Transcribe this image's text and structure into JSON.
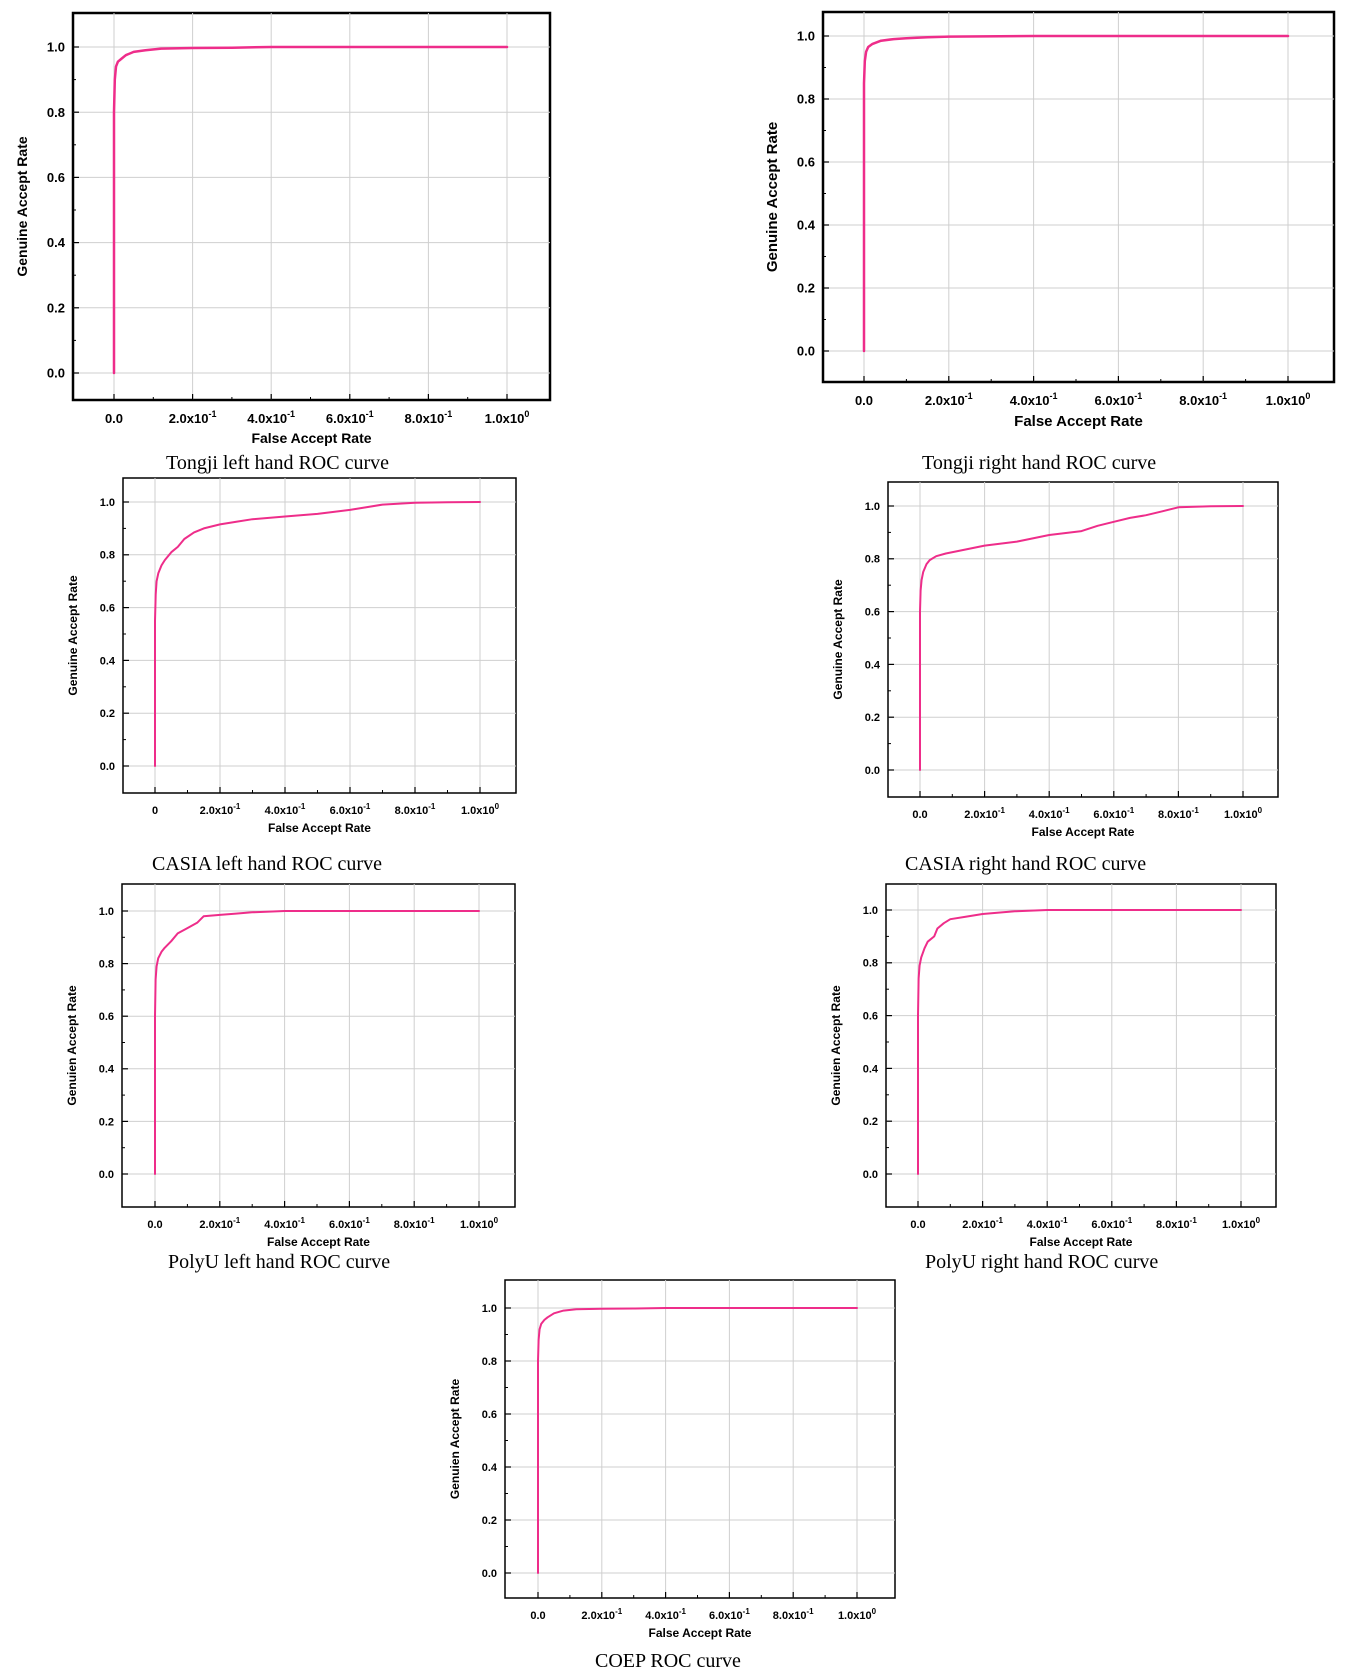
{
  "chart_data": [
    {
      "type": "line",
      "title": "Tongji left hand ROC curve",
      "xlabel": "False Accept Rate",
      "ylabel": "Genuine Accept Rate",
      "xlim": [
        0,
        1
      ],
      "ylim": [
        0,
        1
      ],
      "grid": true,
      "x_ticks": [
        0,
        0.2,
        0.4,
        0.6,
        0.8,
        1.0
      ],
      "x_tick_labels": [
        [
          "0.0",
          ""
        ],
        [
          "2.0x10",
          "-1"
        ],
        [
          "4.0x10",
          "-1"
        ],
        [
          "6.0x10",
          "-1"
        ],
        [
          "8.0x10",
          "-1"
        ],
        [
          "1.0x10",
          "0"
        ]
      ],
      "y_ticks": [
        0,
        0.2,
        0.4,
        0.6,
        0.8,
        1.0
      ],
      "y_tick_labels": [
        "0.0",
        "0.2",
        "0.4",
        "0.6",
        "0.8",
        "1.0"
      ],
      "series": [
        {
          "color": "#ee2d8a",
          "x": [
            0,
            0,
            0.002,
            0.005,
            0.01,
            0.02,
            0.03,
            0.05,
            0.08,
            0.12,
            0.2,
            0.3,
            0.4,
            0.6,
            0.8,
            1.0
          ],
          "y": [
            0,
            0.8,
            0.9,
            0.94,
            0.955,
            0.965,
            0.975,
            0.985,
            0.99,
            0.995,
            0.997,
            0.998,
            1.0,
            1.0,
            1.0,
            1.0
          ]
        }
      ]
    },
    {
      "type": "line",
      "title": "Tongji right hand ROC curve",
      "xlabel": "False Accept Rate",
      "ylabel": "Genuine Accept Rate",
      "xlim": [
        0,
        1
      ],
      "ylim": [
        0,
        1
      ],
      "grid": true,
      "x_ticks": [
        0,
        0.2,
        0.4,
        0.6,
        0.8,
        1.0
      ],
      "x_tick_labels": [
        [
          "0.0",
          ""
        ],
        [
          "2.0x10",
          "-1"
        ],
        [
          "4.0x10",
          "-1"
        ],
        [
          "6.0x10",
          "-1"
        ],
        [
          "8.0x10",
          "-1"
        ],
        [
          "1.0x10",
          "0"
        ]
      ],
      "y_ticks": [
        0,
        0.2,
        0.4,
        0.6,
        0.8,
        1.0
      ],
      "y_tick_labels": [
        "0.0",
        "0.2",
        "0.4",
        "0.6",
        "0.8",
        "1.0"
      ],
      "series": [
        {
          "color": "#ee2d8a",
          "x": [
            0,
            0,
            0.002,
            0.005,
            0.01,
            0.02,
            0.04,
            0.07,
            0.1,
            0.15,
            0.2,
            0.4,
            0.6,
            0.8,
            1.0
          ],
          "y": [
            0,
            0.85,
            0.92,
            0.95,
            0.965,
            0.975,
            0.985,
            0.99,
            0.993,
            0.996,
            0.998,
            1.0,
            1.0,
            1.0,
            1.0
          ]
        }
      ]
    },
    {
      "type": "line",
      "title": "CASIA left hand ROC curve",
      "xlabel": "False Accept Rate",
      "ylabel": "Genuine Accept Rate",
      "xlim": [
        0,
        1
      ],
      "ylim": [
        0,
        1
      ],
      "grid": true,
      "x_ticks": [
        0,
        0.2,
        0.4,
        0.6,
        0.8,
        1.0
      ],
      "x_tick_labels": [
        [
          "0",
          ""
        ],
        [
          "2.0x10",
          "-1"
        ],
        [
          "4.0x10",
          "-1"
        ],
        [
          "6.0x10",
          "-1"
        ],
        [
          "8.0x10",
          "-1"
        ],
        [
          "1.0x10",
          "0"
        ]
      ],
      "y_ticks": [
        0,
        0.2,
        0.4,
        0.6,
        0.8,
        1.0
      ],
      "y_tick_labels": [
        "0.0",
        "0.2",
        "0.4",
        "0.6",
        "0.8",
        "1.0"
      ],
      "series": [
        {
          "color": "#ee2d8a",
          "x": [
            0,
            0,
            0.002,
            0.005,
            0.01,
            0.02,
            0.03,
            0.05,
            0.07,
            0.09,
            0.12,
            0.15,
            0.2,
            0.25,
            0.3,
            0.4,
            0.5,
            0.6,
            0.65,
            0.7,
            0.8,
            0.9,
            1.0
          ],
          "y": [
            0,
            0.55,
            0.65,
            0.7,
            0.73,
            0.76,
            0.78,
            0.81,
            0.83,
            0.86,
            0.885,
            0.9,
            0.915,
            0.925,
            0.935,
            0.945,
            0.955,
            0.97,
            0.98,
            0.99,
            0.997,
            0.999,
            1.0
          ]
        }
      ]
    },
    {
      "type": "line",
      "title": "CASIA right hand ROC curve",
      "xlabel": "False Accept Rate",
      "ylabel": "Genuine Accept Rate",
      "xlim": [
        0,
        1
      ],
      "ylim": [
        0,
        1
      ],
      "grid": true,
      "x_ticks": [
        0,
        0.2,
        0.4,
        0.6,
        0.8,
        1.0
      ],
      "x_tick_labels": [
        [
          "0.0",
          ""
        ],
        [
          "2.0x10",
          "-1"
        ],
        [
          "4.0x10",
          "-1"
        ],
        [
          "6.0x10",
          "-1"
        ],
        [
          "8.0x10",
          "-1"
        ],
        [
          "1.0x10",
          "0"
        ]
      ],
      "y_ticks": [
        0,
        0.2,
        0.4,
        0.6,
        0.8,
        1.0
      ],
      "y_tick_labels": [
        "0.0",
        "0.2",
        "0.4",
        "0.6",
        "0.8",
        "1.0"
      ],
      "series": [
        {
          "color": "#ee2d8a",
          "x": [
            0,
            0,
            0.002,
            0.005,
            0.01,
            0.02,
            0.03,
            0.05,
            0.08,
            0.12,
            0.2,
            0.3,
            0.4,
            0.5,
            0.55,
            0.6,
            0.65,
            0.7,
            0.75,
            0.8,
            0.9,
            1.0
          ],
          "y": [
            0,
            0.6,
            0.68,
            0.72,
            0.75,
            0.78,
            0.795,
            0.81,
            0.82,
            0.83,
            0.85,
            0.865,
            0.89,
            0.905,
            0.925,
            0.94,
            0.955,
            0.965,
            0.98,
            0.995,
            0.999,
            1.0
          ]
        }
      ]
    },
    {
      "type": "line",
      "title": "PolyU left hand ROC curve",
      "xlabel": "False Accept Rate",
      "ylabel": "Genuien Accept Rate",
      "xlim": [
        0,
        1
      ],
      "ylim": [
        0,
        1
      ],
      "grid": true,
      "x_ticks": [
        0,
        0.2,
        0.4,
        0.6,
        0.8,
        1.0
      ],
      "x_tick_labels": [
        [
          "0.0",
          ""
        ],
        [
          "2.0x10",
          "-1"
        ],
        [
          "4.0x10",
          "-1"
        ],
        [
          "6.0x10",
          "-1"
        ],
        [
          "8.0x10",
          "-1"
        ],
        [
          "1.0x10",
          "0"
        ]
      ],
      "y_ticks": [
        0,
        0.2,
        0.4,
        0.6,
        0.8,
        1.0
      ],
      "y_tick_labels": [
        "0.0",
        "0.2",
        "0.4",
        "0.6",
        "0.8",
        "1.0"
      ],
      "series": [
        {
          "color": "#ee2d8a",
          "x": [
            0,
            0,
            0.002,
            0.005,
            0.01,
            0.02,
            0.03,
            0.05,
            0.07,
            0.1,
            0.13,
            0.15,
            0.2,
            0.25,
            0.3,
            0.4,
            0.6,
            0.8,
            1.0
          ],
          "y": [
            0,
            0.6,
            0.74,
            0.79,
            0.82,
            0.845,
            0.86,
            0.885,
            0.915,
            0.935,
            0.955,
            0.98,
            0.985,
            0.99,
            0.995,
            1.0,
            1.0,
            1.0,
            1.0
          ]
        }
      ]
    },
    {
      "type": "line",
      "title": "PolyU right hand ROC curve",
      "xlabel": "False Accept Rate",
      "ylabel": "Genuien Accept Rate",
      "xlim": [
        0,
        1
      ],
      "ylim": [
        0,
        1
      ],
      "grid": true,
      "x_ticks": [
        0,
        0.2,
        0.4,
        0.6,
        0.8,
        1.0
      ],
      "x_tick_labels": [
        [
          "0.0",
          ""
        ],
        [
          "2.0x10",
          "-1"
        ],
        [
          "4.0x10",
          "-1"
        ],
        [
          "6.0x10",
          "-1"
        ],
        [
          "8.0x10",
          "-1"
        ],
        [
          "1.0x10",
          "0"
        ]
      ],
      "y_ticks": [
        0,
        0.2,
        0.4,
        0.6,
        0.8,
        1.0
      ],
      "y_tick_labels": [
        "0.0",
        "0.2",
        "0.4",
        "0.6",
        "0.8",
        "1.0"
      ],
      "series": [
        {
          "color": "#ee2d8a",
          "x": [
            0,
            0,
            0.002,
            0.005,
            0.01,
            0.02,
            0.03,
            0.05,
            0.06,
            0.08,
            0.1,
            0.15,
            0.2,
            0.3,
            0.4,
            0.6,
            0.8,
            1.0
          ],
          "y": [
            0,
            0.6,
            0.74,
            0.79,
            0.82,
            0.855,
            0.88,
            0.9,
            0.93,
            0.95,
            0.965,
            0.975,
            0.985,
            0.995,
            1.0,
            1.0,
            1.0,
            1.0
          ]
        }
      ]
    },
    {
      "type": "line",
      "title": "COEP ROC curve",
      "xlabel": "False Accept Rate",
      "ylabel": "Genuien Accept Rate",
      "xlim": [
        0,
        1
      ],
      "ylim": [
        0,
        1
      ],
      "grid": true,
      "x_ticks": [
        0,
        0.2,
        0.4,
        0.6,
        0.8,
        1.0
      ],
      "x_tick_labels": [
        [
          "0.0",
          ""
        ],
        [
          "2.0x10",
          "-1"
        ],
        [
          "4.0x10",
          "-1"
        ],
        [
          "6.0x10",
          "-1"
        ],
        [
          "8.0x10",
          "-1"
        ],
        [
          "1.0x10",
          "0"
        ]
      ],
      "y_ticks": [
        0,
        0.2,
        0.4,
        0.6,
        0.8,
        1.0
      ],
      "y_tick_labels": [
        "0.0",
        "0.2",
        "0.4",
        "0.6",
        "0.8",
        "1.0"
      ],
      "series": [
        {
          "color": "#ee2d8a",
          "x": [
            0,
            0,
            0.002,
            0.005,
            0.01,
            0.02,
            0.03,
            0.05,
            0.08,
            0.12,
            0.2,
            0.3,
            0.4,
            0.6,
            0.8,
            1.0
          ],
          "y": [
            0,
            0.8,
            0.88,
            0.92,
            0.94,
            0.955,
            0.965,
            0.98,
            0.99,
            0.995,
            0.997,
            0.998,
            1.0,
            1.0,
            1.0,
            1.0
          ]
        }
      ]
    }
  ]
}
